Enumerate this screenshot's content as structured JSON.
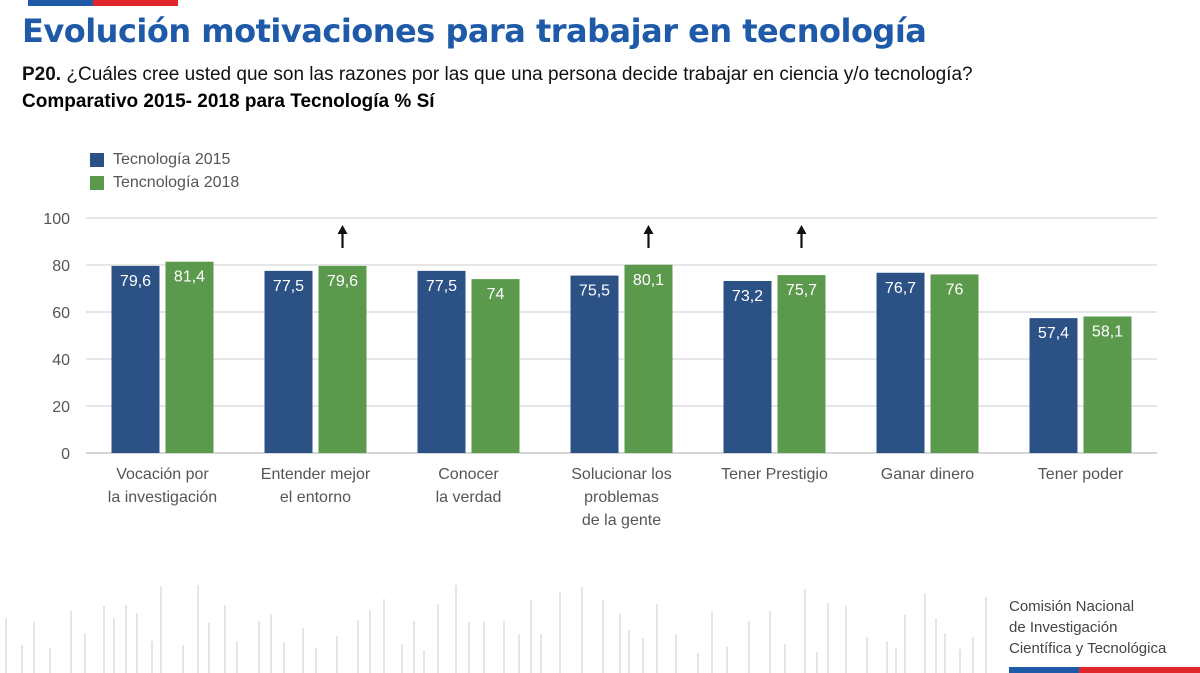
{
  "page": {
    "title": "Evolución motivaciones para trabajar en tecnología",
    "question_code": "P20.",
    "question_text": " ¿Cuáles cree usted que son las razones por las que una persona decide trabajar en ciencia y/o tecnología?",
    "subtitle": "Comparativo 2015- 2018 para Tecnología % Sí"
  },
  "colors": {
    "brand_blue": "#1e5aa8",
    "brand_red": "#e0262a",
    "series_2015": "#2c5185",
    "series_2018": "#5b9a4c"
  },
  "chart_data": {
    "type": "bar",
    "title": "Comparativo 2015- 2018 para Tecnología % Sí",
    "xlabel": "",
    "ylabel": "",
    "ylim": [
      0,
      100
    ],
    "yticks": [
      0,
      20,
      40,
      60,
      80,
      100
    ],
    "grid": true,
    "legend_position": "top-left",
    "categories": [
      [
        "Vocación por",
        "la investigación"
      ],
      [
        "Entender mejor",
        "el entorno"
      ],
      [
        "Conocer",
        "la verdad"
      ],
      [
        "Solucionar los",
        "problemas",
        "de la gente"
      ],
      [
        "Tener Prestigio"
      ],
      [
        "Ganar dinero"
      ],
      [
        "Tener poder"
      ]
    ],
    "series": [
      {
        "name": "Tecnología 2015",
        "color": "#2c5185",
        "values": [
          79.6,
          77.5,
          77.5,
          75.5,
          73.2,
          76.7,
          57.4
        ],
        "labels": [
          "79,6",
          "77,5",
          "77,5",
          "75,5",
          "73,2",
          "76,7",
          "57,4"
        ]
      },
      {
        "name": "Tencnología 2018",
        "color": "#5b9a4c",
        "values": [
          81.4,
          79.6,
          74,
          80.1,
          75.7,
          76,
          58.1
        ],
        "labels": [
          "81,4",
          "79,6",
          "74",
          "80,1",
          "75,7",
          "76",
          "58,1"
        ]
      }
    ],
    "annotations": [
      {
        "category_index": 1,
        "type": "up-arrow"
      },
      {
        "category_index": 3,
        "type": "up-arrow"
      },
      {
        "category_index": 4,
        "type": "up-arrow"
      }
    ]
  },
  "footer": {
    "org_lines": [
      "Comisión Nacional",
      "de Investigación",
      "Científica y Tecnológica"
    ]
  }
}
